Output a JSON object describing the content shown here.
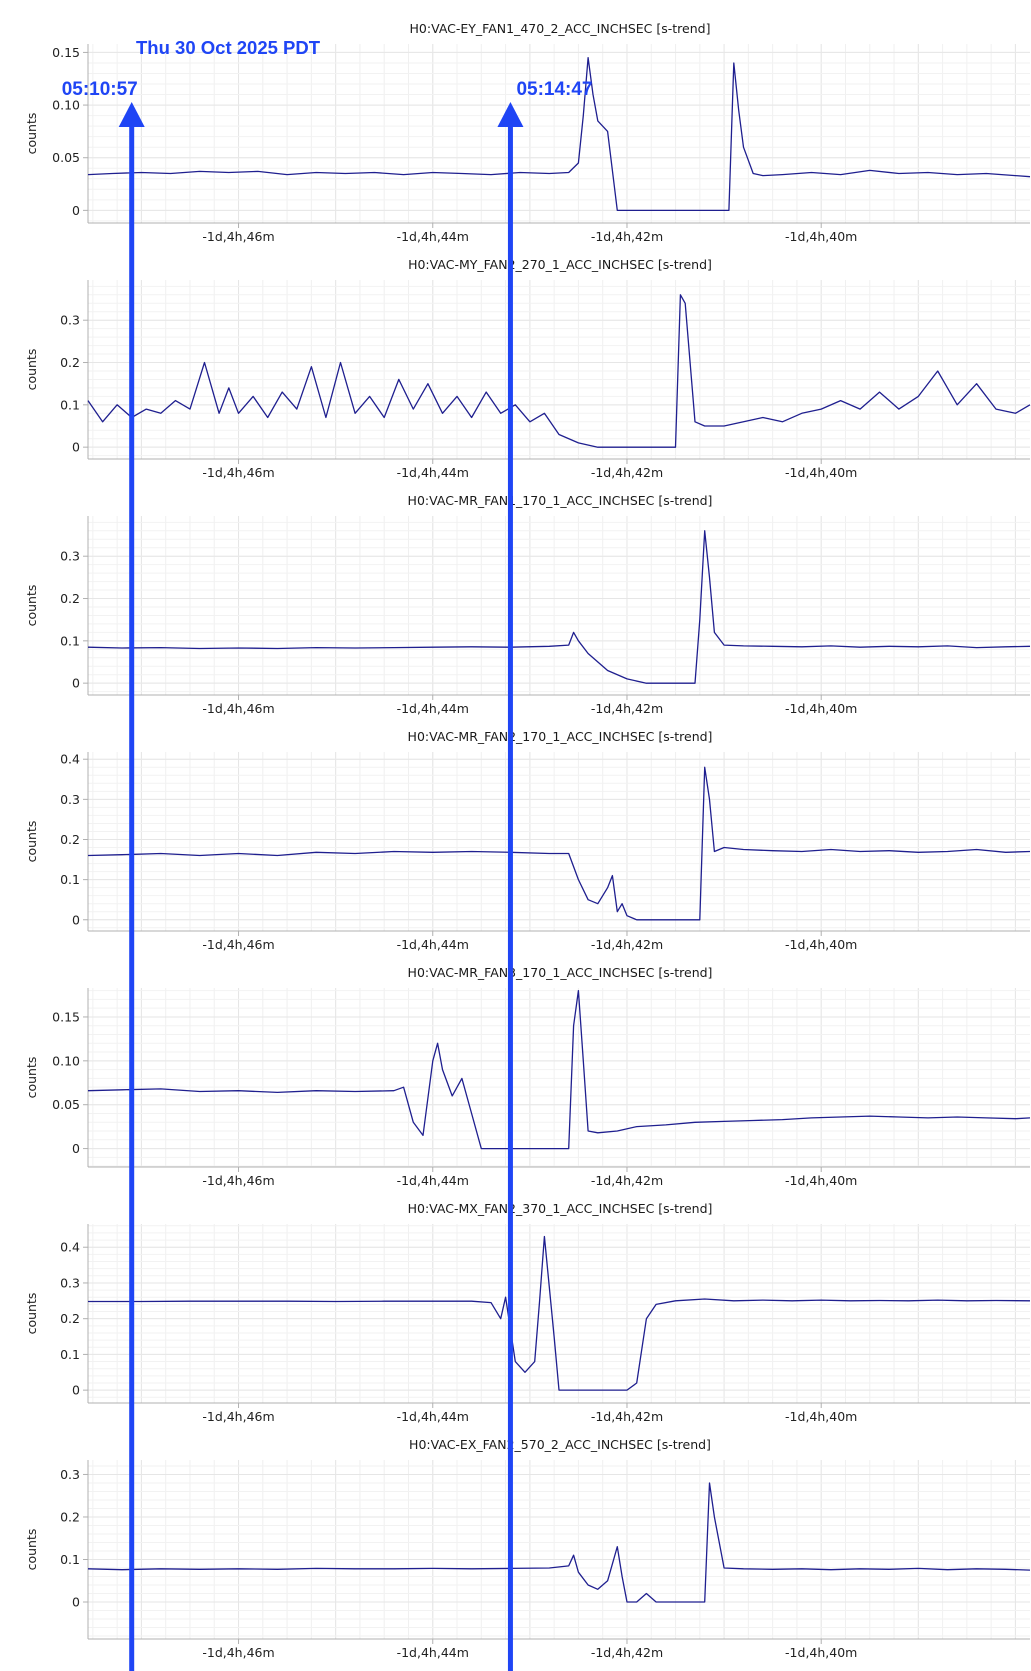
{
  "date_label": "Thu 30 Oct 2025 PDT",
  "colors": {
    "trace": "#1f1f8f",
    "marker": "#1f45f5",
    "grid": "#e6e6e6",
    "axis": "#b0b0b0"
  },
  "markers": [
    {
      "label": "05:10:57",
      "t": -247.1
    },
    {
      "label": "05:14:47",
      "t": -243.2
    }
  ],
  "chart_data": [
    {
      "type": "line",
      "title": "H0:VAC-EY_FAN1_470_2_ACC_INCHSEC [s-trend]",
      "ylabel": "counts",
      "xticks": [
        {
          "v": -246,
          "label": "-1d,4h,46m"
        },
        {
          "v": -244,
          "label": "-1d,4h,44m"
        },
        {
          "v": -242,
          "label": "-1d,4h,42m"
        },
        {
          "v": -240,
          "label": "-1d,4h,40m"
        }
      ],
      "yticks": [
        {
          "v": 0,
          "label": "0"
        },
        {
          "v": 0.05,
          "label": "0.05"
        },
        {
          "v": 0.1,
          "label": "0.10"
        },
        {
          "v": 0.15,
          "label": "0.15"
        }
      ],
      "xlim": [
        -247.55,
        -237.85
      ],
      "ylim": [
        -0.012,
        0.158
      ],
      "series": [
        {
          "x": [
            -247.55,
            -247.3,
            -247.0,
            -246.7,
            -246.4,
            -246.1,
            -245.8,
            -245.5,
            -245.2,
            -244.9,
            -244.6,
            -244.3,
            -244.0,
            -243.7,
            -243.4,
            -243.1,
            -242.8,
            -242.6,
            -242.5,
            -242.45,
            -242.4,
            -242.35,
            -242.3,
            -242.2,
            -242.1,
            -241.9,
            -241.6,
            -241.3,
            -241.0,
            -240.95,
            -240.9,
            -240.85,
            -240.8,
            -240.7,
            -240.6,
            -240.4,
            -240.1,
            -239.8,
            -239.5,
            -239.2,
            -238.9,
            -238.6,
            -238.3,
            -238.0,
            -237.85
          ],
          "y": [
            0.034,
            0.035,
            0.036,
            0.035,
            0.037,
            0.036,
            0.037,
            0.034,
            0.036,
            0.035,
            0.036,
            0.034,
            0.036,
            0.035,
            0.034,
            0.036,
            0.035,
            0.036,
            0.045,
            0.09,
            0.145,
            0.11,
            0.085,
            0.075,
            0.0,
            0.0,
            0.0,
            0.0,
            0.0,
            0.0,
            0.14,
            0.095,
            0.06,
            0.035,
            0.033,
            0.034,
            0.036,
            0.034,
            0.038,
            0.035,
            0.036,
            0.034,
            0.035,
            0.033,
            0.032
          ]
        }
      ]
    },
    {
      "type": "line",
      "title": "H0:VAC-MY_FAN2_270_1_ACC_INCHSEC [s-trend]",
      "ylabel": "counts",
      "xticks": [
        {
          "v": -246,
          "label": "-1d,4h,46m"
        },
        {
          "v": -244,
          "label": "-1d,4h,44m"
        },
        {
          "v": -242,
          "label": "-1d,4h,42m"
        },
        {
          "v": -240,
          "label": "-1d,4h,40m"
        }
      ],
      "yticks": [
        {
          "v": 0,
          "label": "0"
        },
        {
          "v": 0.1,
          "label": "0.1"
        },
        {
          "v": 0.2,
          "label": "0.2"
        },
        {
          "v": 0.3,
          "label": "0.3"
        }
      ],
      "xlim": [
        -247.55,
        -237.85
      ],
      "ylim": [
        -0.028,
        0.395
      ],
      "series": [
        {
          "x": [
            -247.55,
            -247.4,
            -247.25,
            -247.1,
            -246.95,
            -246.8,
            -246.65,
            -246.5,
            -246.35,
            -246.2,
            -246.1,
            -246.0,
            -245.85,
            -245.7,
            -245.55,
            -245.4,
            -245.25,
            -245.1,
            -244.95,
            -244.8,
            -244.65,
            -244.5,
            -244.35,
            -244.2,
            -244.05,
            -243.9,
            -243.75,
            -243.6,
            -243.45,
            -243.3,
            -243.15,
            -243.0,
            -242.85,
            -242.7,
            -242.5,
            -242.3,
            -242.1,
            -241.9,
            -241.7,
            -241.6,
            -241.5,
            -241.45,
            -241.4,
            -241.3,
            -241.2,
            -241.0,
            -240.8,
            -240.6,
            -240.4,
            -240.2,
            -240.0,
            -239.8,
            -239.6,
            -239.4,
            -239.2,
            -239.0,
            -238.8,
            -238.6,
            -238.4,
            -238.2,
            -238.0,
            -237.85
          ],
          "y": [
            0.11,
            0.06,
            0.1,
            0.07,
            0.09,
            0.08,
            0.11,
            0.09,
            0.2,
            0.08,
            0.14,
            0.08,
            0.12,
            0.07,
            0.13,
            0.09,
            0.19,
            0.07,
            0.2,
            0.08,
            0.12,
            0.07,
            0.16,
            0.09,
            0.15,
            0.08,
            0.12,
            0.07,
            0.13,
            0.08,
            0.1,
            0.06,
            0.08,
            0.03,
            0.01,
            0.0,
            0.0,
            0.0,
            0.0,
            0.0,
            0.0,
            0.36,
            0.34,
            0.06,
            0.05,
            0.05,
            0.06,
            0.07,
            0.06,
            0.08,
            0.09,
            0.11,
            0.09,
            0.13,
            0.09,
            0.12,
            0.18,
            0.1,
            0.15,
            0.09,
            0.08,
            0.1
          ]
        }
      ]
    },
    {
      "type": "line",
      "title": "H0:VAC-MR_FAN1_170_1_ACC_INCHSEC [s-trend]",
      "ylabel": "counts",
      "xticks": [
        {
          "v": -246,
          "label": "-1d,4h,46m"
        },
        {
          "v": -244,
          "label": "-1d,4h,44m"
        },
        {
          "v": -242,
          "label": "-1d,4h,42m"
        },
        {
          "v": -240,
          "label": "-1d,4h,40m"
        }
      ],
      "yticks": [
        {
          "v": 0,
          "label": "0"
        },
        {
          "v": 0.1,
          "label": "0.1"
        },
        {
          "v": 0.2,
          "label": "0.2"
        },
        {
          "v": 0.3,
          "label": "0.3"
        }
      ],
      "xlim": [
        -247.55,
        -237.85
      ],
      "ylim": [
        -0.028,
        0.395
      ],
      "series": [
        {
          "x": [
            -247.55,
            -247.2,
            -246.8,
            -246.4,
            -246.0,
            -245.6,
            -245.2,
            -244.8,
            -244.4,
            -244.0,
            -243.6,
            -243.2,
            -242.8,
            -242.6,
            -242.55,
            -242.5,
            -242.4,
            -242.2,
            -242.0,
            -241.8,
            -241.6,
            -241.4,
            -241.3,
            -241.25,
            -241.2,
            -241.15,
            -241.1,
            -241.0,
            -240.8,
            -240.5,
            -240.2,
            -239.9,
            -239.6,
            -239.3,
            -239.0,
            -238.7,
            -238.4,
            -238.1,
            -237.85
          ],
          "y": [
            0.085,
            0.083,
            0.084,
            0.082,
            0.083,
            0.082,
            0.084,
            0.083,
            0.084,
            0.085,
            0.086,
            0.085,
            0.087,
            0.09,
            0.12,
            0.1,
            0.07,
            0.03,
            0.01,
            0.0,
            0.0,
            0.0,
            0.0,
            0.15,
            0.36,
            0.25,
            0.12,
            0.09,
            0.088,
            0.087,
            0.086,
            0.088,
            0.085,
            0.087,
            0.086,
            0.088,
            0.084,
            0.086,
            0.087
          ]
        }
      ]
    },
    {
      "type": "line",
      "title": "H0:VAC-MR_FAN2_170_1_ACC_INCHSEC [s-trend]",
      "ylabel": "counts",
      "xticks": [
        {
          "v": -246,
          "label": "-1d,4h,46m"
        },
        {
          "v": -244,
          "label": "-1d,4h,44m"
        },
        {
          "v": -242,
          "label": "-1d,4h,42m"
        },
        {
          "v": -240,
          "label": "-1d,4h,40m"
        }
      ],
      "yticks": [
        {
          "v": 0,
          "label": "0"
        },
        {
          "v": 0.1,
          "label": "0.1"
        },
        {
          "v": 0.2,
          "label": "0.2"
        },
        {
          "v": 0.3,
          "label": "0.3"
        },
        {
          "v": 0.4,
          "label": "0.4"
        }
      ],
      "xlim": [
        -247.55,
        -237.85
      ],
      "ylim": [
        -0.028,
        0.418
      ],
      "series": [
        {
          "x": [
            -247.55,
            -247.2,
            -246.8,
            -246.4,
            -246.0,
            -245.6,
            -245.2,
            -244.8,
            -244.4,
            -244.0,
            -243.6,
            -243.2,
            -242.8,
            -242.6,
            -242.5,
            -242.4,
            -242.3,
            -242.2,
            -242.15,
            -242.1,
            -242.05,
            -242.0,
            -241.9,
            -241.8,
            -241.6,
            -241.4,
            -241.3,
            -241.25,
            -241.2,
            -241.15,
            -241.1,
            -241.0,
            -240.8,
            -240.5,
            -240.2,
            -239.9,
            -239.6,
            -239.3,
            -239.0,
            -238.7,
            -238.4,
            -238.1,
            -237.85
          ],
          "y": [
            0.16,
            0.162,
            0.165,
            0.16,
            0.165,
            0.16,
            0.168,
            0.165,
            0.17,
            0.168,
            0.17,
            0.168,
            0.165,
            0.165,
            0.1,
            0.05,
            0.04,
            0.08,
            0.11,
            0.02,
            0.04,
            0.01,
            0.0,
            0.0,
            0.0,
            0.0,
            0.0,
            0.0,
            0.38,
            0.3,
            0.17,
            0.18,
            0.175,
            0.172,
            0.17,
            0.175,
            0.17,
            0.172,
            0.168,
            0.17,
            0.175,
            0.168,
            0.17
          ]
        }
      ]
    },
    {
      "type": "line",
      "title": "H0:VAC-MR_FAN3_170_1_ACC_INCHSEC [s-trend]",
      "ylabel": "counts",
      "xticks": [
        {
          "v": -246,
          "label": "-1d,4h,46m"
        },
        {
          "v": -244,
          "label": "-1d,4h,44m"
        },
        {
          "v": -242,
          "label": "-1d,4h,42m"
        },
        {
          "v": -240,
          "label": "-1d,4h,40m"
        }
      ],
      "yticks": [
        {
          "v": 0,
          "label": "0"
        },
        {
          "v": 0.05,
          "label": "0.05"
        },
        {
          "v": 0.1,
          "label": "0.10"
        },
        {
          "v": 0.15,
          "label": "0.15"
        }
      ],
      "xlim": [
        -247.55,
        -237.85
      ],
      "ylim": [
        -0.021,
        0.183
      ],
      "series": [
        {
          "x": [
            -247.55,
            -247.2,
            -246.8,
            -246.4,
            -246.0,
            -245.6,
            -245.2,
            -244.8,
            -244.4,
            -244.3,
            -244.2,
            -244.1,
            -244.0,
            -243.95,
            -243.9,
            -243.8,
            -243.7,
            -243.6,
            -243.5,
            -243.4,
            -243.2,
            -242.9,
            -242.6,
            -242.55,
            -242.5,
            -242.45,
            -242.4,
            -242.3,
            -242.1,
            -241.9,
            -241.6,
            -241.3,
            -241.0,
            -240.7,
            -240.4,
            -240.1,
            -239.8,
            -239.5,
            -239.2,
            -238.9,
            -238.6,
            -238.3,
            -238.0,
            -237.85
          ],
          "y": [
            0.066,
            0.067,
            0.068,
            0.065,
            0.066,
            0.064,
            0.066,
            0.065,
            0.066,
            0.07,
            0.03,
            0.015,
            0.1,
            0.12,
            0.09,
            0.06,
            0.08,
            0.04,
            0.0,
            0.0,
            0.0,
            0.0,
            0.0,
            0.14,
            0.18,
            0.1,
            0.02,
            0.018,
            0.02,
            0.025,
            0.027,
            0.03,
            0.031,
            0.032,
            0.033,
            0.035,
            0.036,
            0.037,
            0.036,
            0.035,
            0.036,
            0.035,
            0.034,
            0.035
          ]
        }
      ]
    },
    {
      "type": "line",
      "title": "H0:VAC-MX_FAN2_370_1_ACC_INCHSEC [s-trend]",
      "ylabel": "counts",
      "xticks": [
        {
          "v": -246,
          "label": "-1d,4h,46m"
        },
        {
          "v": -244,
          "label": "-1d,4h,44m"
        },
        {
          "v": -242,
          "label": "-1d,4h,42m"
        },
        {
          "v": -240,
          "label": "-1d,4h,40m"
        }
      ],
      "yticks": [
        {
          "v": 0,
          "label": "0"
        },
        {
          "v": 0.1,
          "label": "0.1"
        },
        {
          "v": 0.2,
          "label": "0.2"
        },
        {
          "v": 0.3,
          "label": "0.3"
        },
        {
          "v": 0.4,
          "label": "0.4"
        }
      ],
      "xlim": [
        -247.55,
        -237.85
      ],
      "ylim": [
        -0.036,
        0.465
      ],
      "series": [
        {
          "x": [
            -247.55,
            -247.0,
            -246.5,
            -246.0,
            -245.5,
            -245.0,
            -244.5,
            -244.0,
            -243.6,
            -243.4,
            -243.3,
            -243.25,
            -243.15,
            -243.05,
            -242.95,
            -242.9,
            -242.85,
            -242.75,
            -242.7,
            -242.6,
            -242.4,
            -242.2,
            -242.0,
            -241.9,
            -241.8,
            -241.7,
            -241.5,
            -241.2,
            -240.9,
            -240.6,
            -240.3,
            -240.0,
            -239.7,
            -239.4,
            -239.1,
            -238.8,
            -238.5,
            -238.2,
            -237.85
          ],
          "y": [
            0.248,
            0.248,
            0.249,
            0.249,
            0.249,
            0.248,
            0.249,
            0.249,
            0.249,
            0.245,
            0.2,
            0.26,
            0.08,
            0.05,
            0.08,
            0.25,
            0.43,
            0.15,
            0.0,
            0.0,
            0.0,
            0.0,
            0.0,
            0.02,
            0.2,
            0.24,
            0.25,
            0.255,
            0.25,
            0.252,
            0.25,
            0.252,
            0.25,
            0.251,
            0.25,
            0.252,
            0.25,
            0.251,
            0.25
          ]
        }
      ]
    },
    {
      "type": "line",
      "title": "H0:VAC-EX_FAN2_570_2_ACC_INCHSEC [s-trend]",
      "ylabel": "counts",
      "xticks": [
        {
          "v": -246,
          "label": "-1d,4h,46m"
        },
        {
          "v": -244,
          "label": "-1d,4h,44m"
        },
        {
          "v": -242,
          "label": "-1d,4h,42m"
        },
        {
          "v": -240,
          "label": "-1d,4h,40m"
        }
      ],
      "yticks": [
        {
          "v": 0,
          "label": "0"
        },
        {
          "v": 0.1,
          "label": "0.1"
        },
        {
          "v": 0.2,
          "label": "0.2"
        },
        {
          "v": 0.3,
          "label": "0.3"
        }
      ],
      "xlim": [
        -247.55,
        -237.85
      ],
      "ylim": [
        -0.087,
        0.334
      ],
      "series": [
        {
          "x": [
            -247.55,
            -247.2,
            -246.8,
            -246.4,
            -246.0,
            -245.6,
            -245.2,
            -244.8,
            -244.4,
            -244.0,
            -243.6,
            -243.2,
            -242.8,
            -242.6,
            -242.55,
            -242.5,
            -242.4,
            -242.3,
            -242.2,
            -242.1,
            -242.05,
            -242.0,
            -241.95,
            -241.9,
            -241.8,
            -241.7,
            -241.6,
            -241.5,
            -241.4,
            -241.3,
            -241.2,
            -241.15,
            -241.1,
            -241.0,
            -240.8,
            -240.5,
            -240.2,
            -239.9,
            -239.6,
            -239.3,
            -239.0,
            -238.7,
            -238.4,
            -238.1,
            -237.85
          ],
          "y": [
            0.078,
            0.076,
            0.078,
            0.077,
            0.078,
            0.077,
            0.079,
            0.078,
            0.078,
            0.079,
            0.078,
            0.079,
            0.08,
            0.085,
            0.11,
            0.07,
            0.04,
            0.03,
            0.05,
            0.13,
            0.06,
            0.0,
            0.0,
            0.0,
            0.02,
            0.0,
            0.0,
            0.0,
            0.0,
            0.0,
            0.0,
            0.28,
            0.2,
            0.08,
            0.078,
            0.077,
            0.078,
            0.076,
            0.078,
            0.077,
            0.079,
            0.076,
            0.078,
            0.077,
            0.075
          ]
        }
      ]
    }
  ]
}
